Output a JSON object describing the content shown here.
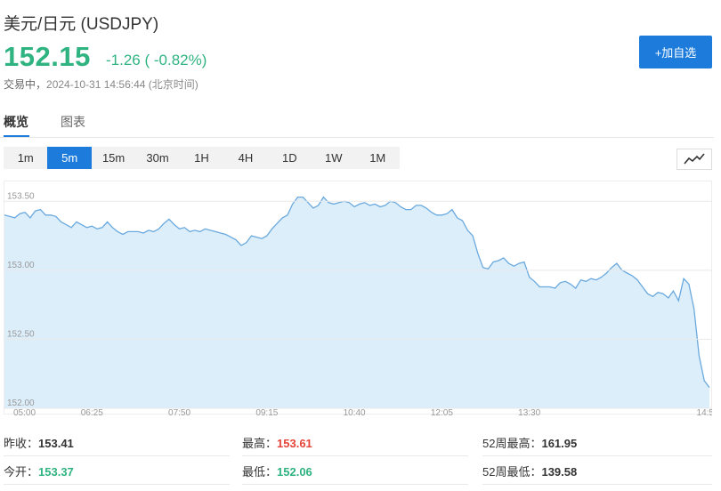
{
  "header": {
    "title": "美元/日元  (USDJPY)",
    "price": "152.15",
    "change": "-1.26 ( -0.82%)",
    "status_label": "交易中，",
    "timestamp": "2024-10-31 14:56:44 (北京时间)",
    "watch_button": "+加自选"
  },
  "tabs": [
    {
      "label": "概览",
      "active": true
    },
    {
      "label": "图表",
      "active": false
    }
  ],
  "periods": [
    {
      "label": "1m",
      "active": false
    },
    {
      "label": "5m",
      "active": true
    },
    {
      "label": "15m",
      "active": false
    },
    {
      "label": "30m",
      "active": false
    },
    {
      "label": "1H",
      "active": false
    },
    {
      "label": "4H",
      "active": false
    },
    {
      "label": "1D",
      "active": false
    },
    {
      "label": "1W",
      "active": false
    },
    {
      "label": "1M",
      "active": false
    }
  ],
  "chart_type_icon": "line-chart-icon",
  "colors": {
    "up_green": "#2fb380",
    "down_red": "#e6443a",
    "accent_blue": "#1d7cdb",
    "line": "#6aa9dd",
    "area_fill": "#ddeefb"
  },
  "stats": {
    "prev_close": {
      "label": "昨收：",
      "value": "153.41"
    },
    "open": {
      "label": "今开：",
      "value": "153.37"
    },
    "high": {
      "label": "最高：",
      "value": "153.61"
    },
    "low": {
      "label": "最低：",
      "value": "152.06"
    },
    "high_52w": {
      "label": "52周最高：",
      "value": "161.95"
    },
    "low_52w": {
      "label": "52周最低：",
      "value": "139.58"
    }
  },
  "chart_data": {
    "type": "area",
    "ylim": [
      152.0,
      153.65
    ],
    "y_ticks": [
      "152.00",
      "152.50",
      "153.00",
      "153.50"
    ],
    "x_ticks": [
      "05:00",
      "06:25",
      "07:50",
      "09:15",
      "10:40",
      "12:05",
      "13:30",
      "14:5"
    ],
    "x_tick_positions": [
      0,
      17,
      34,
      51,
      68,
      85,
      102,
      119
    ],
    "values": [
      153.4,
      153.39,
      153.38,
      153.41,
      153.42,
      153.38,
      153.43,
      153.44,
      153.4,
      153.4,
      153.39,
      153.35,
      153.33,
      153.31,
      153.35,
      153.33,
      153.31,
      153.32,
      153.3,
      153.31,
      153.35,
      153.31,
      153.28,
      153.26,
      153.28,
      153.28,
      153.28,
      153.27,
      153.29,
      153.28,
      153.3,
      153.34,
      153.37,
      153.33,
      153.3,
      153.31,
      153.28,
      153.29,
      153.28,
      153.3,
      153.29,
      153.28,
      153.27,
      153.26,
      153.24,
      153.22,
      153.18,
      153.2,
      153.25,
      153.24,
      153.23,
      153.25,
      153.3,
      153.34,
      153.38,
      153.4,
      153.48,
      153.53,
      153.53,
      153.49,
      153.45,
      153.47,
      153.53,
      153.49,
      153.48,
      153.49,
      153.5,
      153.49,
      153.46,
      153.48,
      153.49,
      153.47,
      153.48,
      153.46,
      153.47,
      153.5,
      153.49,
      153.46,
      153.44,
      153.44,
      153.47,
      153.47,
      153.45,
      153.42,
      153.4,
      153.4,
      153.41,
      153.44,
      153.38,
      153.36,
      153.29,
      153.25,
      153.12,
      153.02,
      153.01,
      153.06,
      153.07,
      153.09,
      153.05,
      153.03,
      153.05,
      153.06,
      152.95,
      152.92,
      152.88,
      152.88,
      152.88,
      152.87,
      152.91,
      152.92,
      152.9,
      152.87,
      152.93,
      152.92,
      152.94,
      152.93,
      152.95,
      152.98,
      153.02,
      153.05,
      153.0,
      152.98,
      152.96,
      152.93,
      152.88,
      152.83,
      152.81,
      152.84,
      152.83,
      152.8,
      152.85,
      152.78,
      152.94,
      152.9,
      152.72,
      152.38,
      152.2,
      152.15
    ]
  }
}
